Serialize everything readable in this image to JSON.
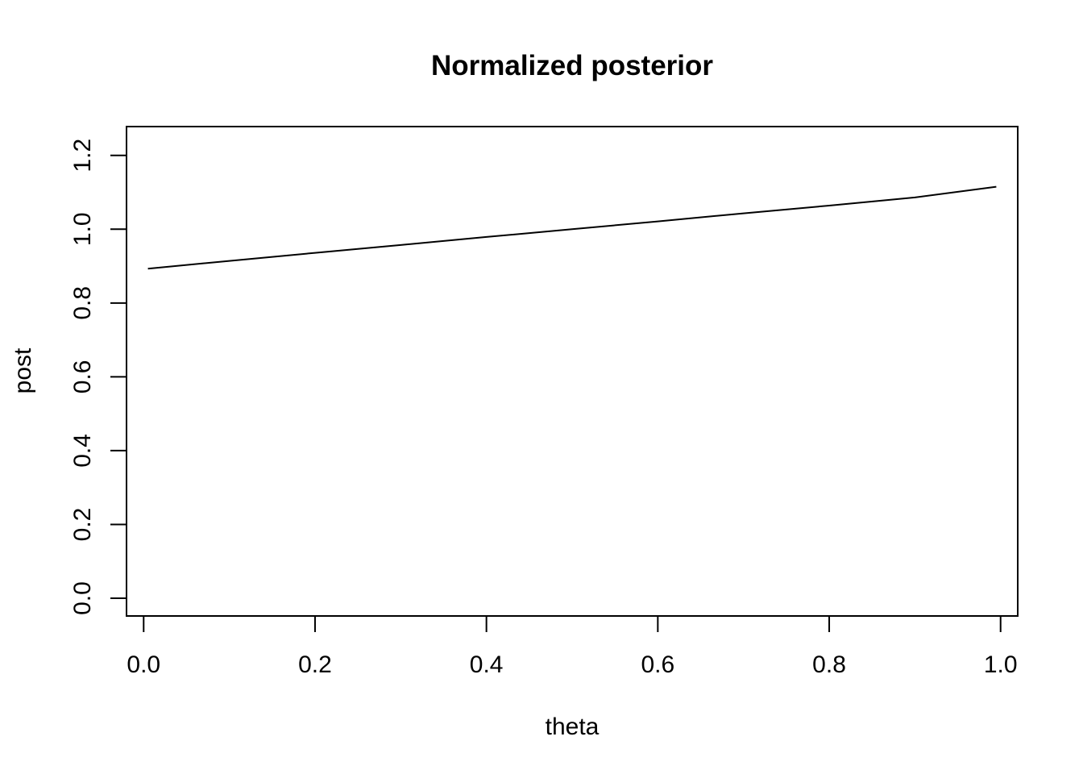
{
  "chart_data": {
    "type": "line",
    "title": "Normalized posterior",
    "xlabel": "theta",
    "ylabel": "post",
    "xlim": [
      -0.02,
      1.02
    ],
    "ylim": [
      -0.048,
      1.278
    ],
    "xticks": [
      0.0,
      0.2,
      0.4,
      0.6,
      0.8,
      1.0
    ],
    "xtick_labels": [
      "0.0",
      "0.2",
      "0.4",
      "0.6",
      "0.8",
      "1.0"
    ],
    "yticks": [
      0.0,
      0.2,
      0.4,
      0.6,
      0.8,
      1.0,
      1.2
    ],
    "ytick_labels": [
      "0.0",
      "0.2",
      "0.4",
      "0.6",
      "0.8",
      "1.0",
      "1.2"
    ],
    "grid": false,
    "series": [
      {
        "x": [
          0.005,
          0.1,
          0.2,
          0.3,
          0.4,
          0.5,
          0.6,
          0.7,
          0.8,
          0.9,
          0.995
        ],
        "values": [
          0.893,
          0.914,
          0.936,
          0.957,
          0.979,
          1.0,
          1.021,
          1.043,
          1.064,
          1.086,
          1.115
        ]
      }
    ]
  }
}
